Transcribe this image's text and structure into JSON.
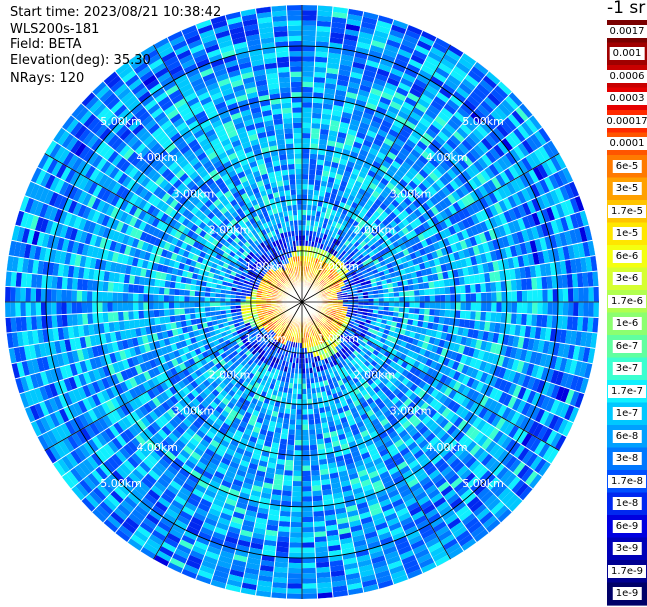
{
  "header": {
    "start_time": "Start time: 2023/08/21 10:38:42",
    "instrument": "WLS200s-181",
    "field": "Field: BETA",
    "elevation": "Elevation(deg): 35.30",
    "nrays": "NRays: 120"
  },
  "colorbar": {
    "units": "-1 sr",
    "labels": [
      "0.0017",
      "0.001",
      "0.0006",
      "0.0003",
      "0.00017",
      "0.0001",
      "6e-5",
      "3e-5",
      "1.7e-5",
      "1e-5",
      "6e-6",
      "3e-6",
      "1.7e-6",
      "1e-6",
      "6e-7",
      "3e-7",
      "1.7e-7",
      "1e-7",
      "6e-8",
      "3e-8",
      "1.7e-8",
      "1e-8",
      "6e-9",
      "3e-9",
      "1.7e-9",
      "1e-9"
    ],
    "colors": [
      "#7a0000",
      "#a00000",
      "#c80000",
      "#e60000",
      "#ff2a00",
      "#ff5500",
      "#ff7a00",
      "#ffa000",
      "#ffc400",
      "#ffe600",
      "#f4ff10",
      "#d6ff30",
      "#b0ff50",
      "#8cff70",
      "#60ffa0",
      "#3cffd0",
      "#10f0ff",
      "#00c8ff",
      "#00a0ff",
      "#0078ff",
      "#0050ff",
      "#0028f0",
      "#0000e0",
      "#0000b8",
      "#000090",
      "#000068"
    ]
  },
  "chart_data": {
    "type": "heatmap",
    "projection": "polar-ppi",
    "field": "BETA",
    "elevation_deg": 35.3,
    "n_rays": 120,
    "max_range_km": 5.8,
    "range_rings_km": [
      1.0,
      2.0,
      3.0,
      4.0,
      5.0
    ],
    "ring_labels": [
      "1.00km",
      "2.00km",
      "3.00km",
      "4.00km",
      "5.00km"
    ],
    "spoke_angles_deg": [
      0,
      30,
      60,
      90,
      120,
      150,
      180,
      210,
      240,
      270,
      300,
      330
    ],
    "values_summary": {
      "near_range_km": [
        0.0,
        1.0
      ],
      "near_value_range": [
        1e-06,
        3e-05
      ],
      "far_value_range": [
        3e-09,
        3e-08
      ]
    },
    "grid": true
  }
}
